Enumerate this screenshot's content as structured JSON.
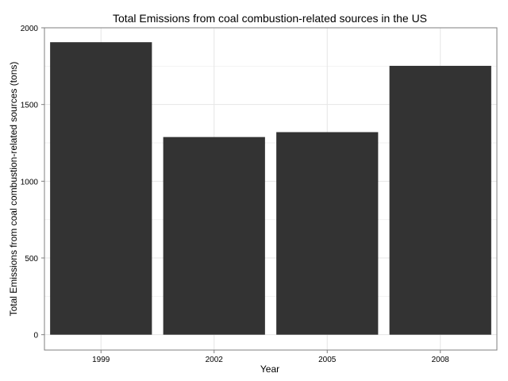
{
  "chart_data": {
    "type": "bar",
    "title": "Total Emissions from coal combustion-related sources in the US",
    "xlabel": "Year",
    "ylabel": "Total Emissions from coal combustion-related sources (tons)",
    "categories": [
      "1999",
      "2002",
      "2005",
      "2008"
    ],
    "values": [
      1906,
      1288,
      1320,
      1752
    ],
    "ylim": [
      -100,
      2000
    ],
    "yticks": [
      0,
      500,
      1000,
      1500,
      2000
    ],
    "ytick_labels": [
      "0",
      "500",
      "1000",
      "1500",
      "2000"
    ],
    "grid": true,
    "legend": "none",
    "colors": {
      "bar": "#333333",
      "grid_major": "#e6e6e6",
      "grid_minor": "#f2f2f2",
      "panel_border": "#7f7f7f",
      "background": "#ffffff"
    }
  }
}
